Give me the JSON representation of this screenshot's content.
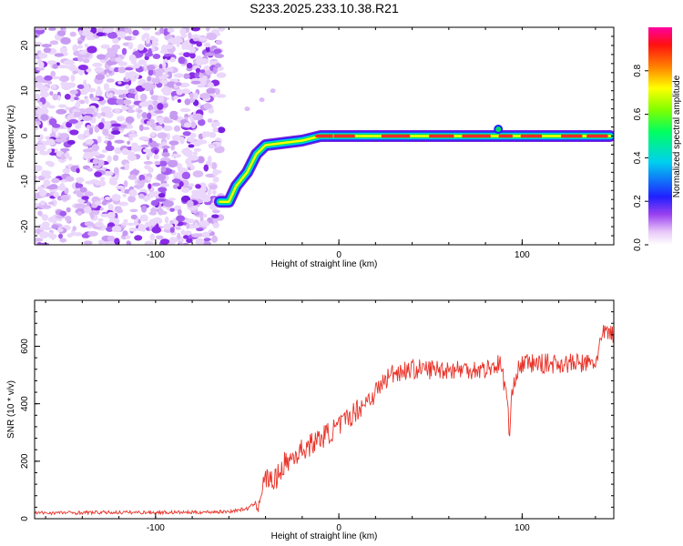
{
  "title": "S233.2025.233.10.38.R21",
  "chart_data": [
    {
      "type": "heatmap",
      "xlabel": "Height of straight line (km)",
      "ylabel": "Frequency (Hz)",
      "xlim": [
        -166,
        150
      ],
      "ylim": [
        -24,
        24
      ],
      "xticks": [
        -100,
        0,
        100
      ],
      "yticks": [
        -20,
        -10,
        0,
        10,
        20
      ],
      "colorbar": {
        "label": "Normalized spectral amplitude",
        "range": [
          0,
          1
        ],
        "ticks": [
          "0.0",
          "0.2",
          "0.4",
          "0.6",
          "0.8"
        ]
      },
      "signal_track": [
        {
          "x": -65,
          "y": -14.5
        },
        {
          "x": -60,
          "y": -14.5
        },
        {
          "x": -56,
          "y": -11
        },
        {
          "x": -50,
          "y": -8
        },
        {
          "x": -45,
          "y": -4
        },
        {
          "x": -40,
          "y": -2
        },
        {
          "x": -30,
          "y": -1.5
        },
        {
          "x": -20,
          "y": -1
        },
        {
          "x": -10,
          "y": 0
        },
        {
          "x": 0,
          "y": 0
        },
        {
          "x": 50,
          "y": 0
        },
        {
          "x": 100,
          "y": 0
        },
        {
          "x": 148,
          "y": 0
        }
      ]
    },
    {
      "type": "line",
      "xlabel": "Height of straight line (km)",
      "ylabel": "SNR (10 * v/v)",
      "xlim": [
        -166,
        150
      ],
      "ylim": [
        0,
        760
      ],
      "xticks": [
        -100,
        0,
        100
      ],
      "yticks": [
        0,
        200,
        400,
        600
      ],
      "series": [
        {
          "name": "SNR",
          "color": "#e83228",
          "points": [
            [
              -166,
              20
            ],
            [
              -120,
              22
            ],
            [
              -80,
              22
            ],
            [
              -60,
              25
            ],
            [
              -50,
              35
            ],
            [
              -44,
              60
            ],
            [
              -40,
              140
            ],
            [
              -35,
              130
            ],
            [
              -30,
              190
            ],
            [
              -20,
              240
            ],
            [
              -10,
              280
            ],
            [
              0,
              320
            ],
            [
              10,
              380
            ],
            [
              20,
              440
            ],
            [
              25,
              480
            ],
            [
              30,
              510
            ],
            [
              40,
              520
            ],
            [
              60,
              520
            ],
            [
              80,
              520
            ],
            [
              88,
              540
            ],
            [
              92,
              420
            ],
            [
              93,
              270
            ],
            [
              95,
              480
            ],
            [
              100,
              540
            ],
            [
              120,
              540
            ],
            [
              140,
              540
            ],
            [
              142,
              600
            ],
            [
              145,
              650
            ],
            [
              150,
              640
            ]
          ]
        }
      ]
    }
  ]
}
